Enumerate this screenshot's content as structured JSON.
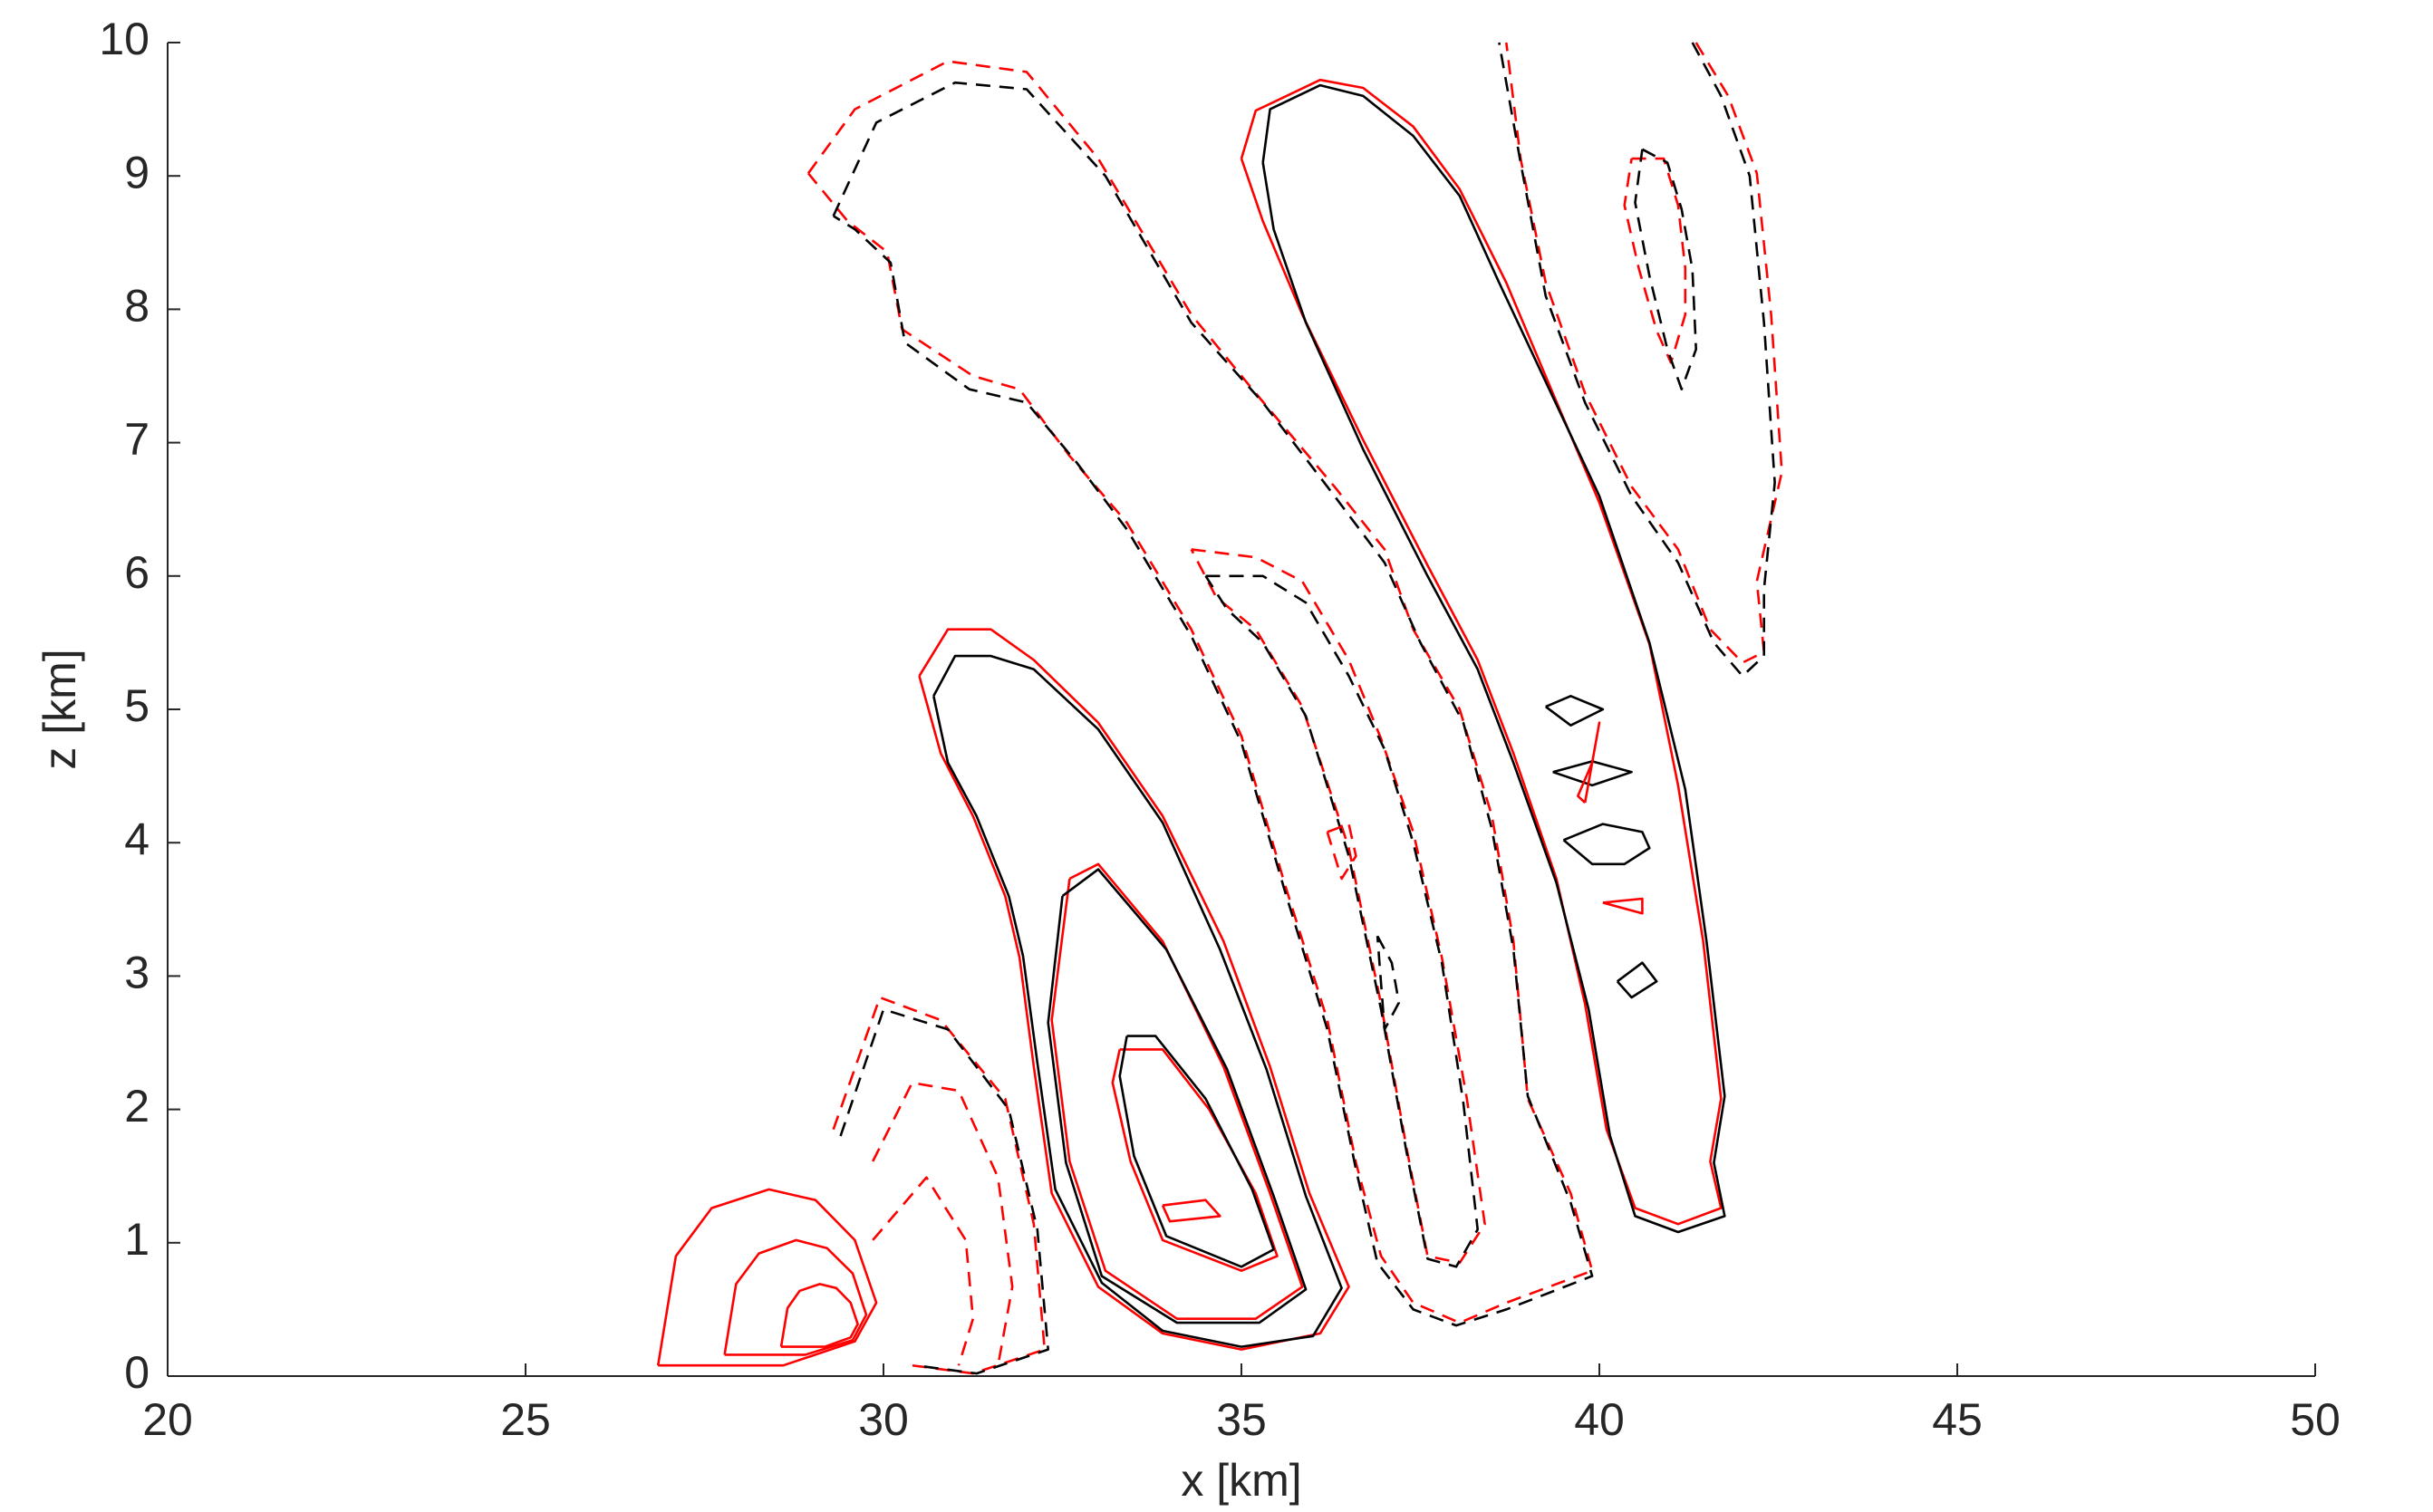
{
  "chart_data": {
    "type": "contour",
    "xlabel": "x [km]",
    "ylabel": "z [km]",
    "xlim": [
      20,
      50
    ],
    "ylim": [
      0,
      10
    ],
    "xticks": [
      20,
      25,
      30,
      35,
      40,
      45,
      50
    ],
    "yticks": [
      0,
      1,
      2,
      3,
      4,
      5,
      6,
      7,
      8,
      9,
      10
    ],
    "contours": [
      {
        "color": "#ff0000",
        "style": "dashed",
        "x": [
          28.95,
          29.6,
          30.9,
          32.0,
          33.0,
          34.3,
          35.2,
          36.3,
          37.0,
          37.4,
          38.05,
          38.5,
          38.8,
          39.0,
          39.6,
          39.9,
          38.7,
          38.05,
          37.4,
          36.95,
          36.6,
          36.2,
          35.6,
          35.0,
          34.3,
          33.4,
          32.6,
          31.9,
          31.25,
          30.26,
          30.05,
          29.5,
          28.95
        ],
        "y": [
          9.02,
          9.5,
          9.86,
          9.78,
          9.13,
          7.96,
          7.37,
          6.67,
          6.2,
          5.6,
          5.0,
          4.2,
          3.26,
          2.08,
          1.37,
          0.79,
          0.55,
          0.4,
          0.55,
          0.9,
          1.6,
          2.67,
          3.7,
          4.8,
          5.6,
          6.4,
          6.9,
          7.4,
          7.5,
          7.85,
          8.43,
          8.66,
          9.02
        ]
      },
      {
        "color": "#000000",
        "style": "dashed",
        "x": [
          29.3,
          29.9,
          31.0,
          32.0,
          33.1,
          34.3,
          35.3,
          36.3,
          37.0,
          37.5,
          38.1,
          38.5,
          38.8,
          39.0,
          39.6,
          39.9,
          38.7,
          38.0,
          37.4,
          36.9,
          36.6,
          36.2,
          35.6,
          35.0,
          34.3,
          33.4,
          32.7,
          32.0,
          31.2,
          30.3,
          30.1,
          29.6,
          29.3
        ],
        "y": [
          8.7,
          9.4,
          9.7,
          9.65,
          9.0,
          7.9,
          7.3,
          6.6,
          6.1,
          5.5,
          4.9,
          4.1,
          3.2,
          2.1,
          1.3,
          0.75,
          0.5,
          0.38,
          0.5,
          0.85,
          1.55,
          2.6,
          3.65,
          4.75,
          5.55,
          6.35,
          6.85,
          7.3,
          7.4,
          7.75,
          8.35,
          8.6,
          8.7
        ]
      },
      {
        "color": "#ff0000",
        "style": "dashed",
        "x": [
          34.3,
          35.2,
          35.85,
          36.5,
          36.95,
          37.4,
          37.8,
          38.15,
          38.4,
          38.05,
          37.6,
          37.3,
          36.95,
          36.5,
          35.85,
          35.2,
          34.65,
          34.3
        ],
        "y": [
          6.2,
          6.14,
          5.96,
          5.37,
          4.78,
          4.08,
          3.14,
          2.08,
          1.14,
          0.85,
          0.9,
          1.73,
          2.79,
          3.96,
          5.02,
          5.6,
          5.84,
          6.2
        ]
      },
      {
        "color": "#000000",
        "style": "dashed",
        "x": [
          34.5,
          35.3,
          35.9,
          36.5,
          37.0,
          37.4,
          37.8,
          38.1,
          38.3,
          38.0,
          37.6,
          37.3,
          36.95,
          36.5,
          35.9,
          35.3,
          34.8,
          34.5
        ],
        "y": [
          6.0,
          6.0,
          5.8,
          5.25,
          4.7,
          4.0,
          3.1,
          2.05,
          1.1,
          0.82,
          0.88,
          1.7,
          2.75,
          3.9,
          4.95,
          5.5,
          5.75,
          6.0
        ]
      },
      {
        "color": "#ff0000",
        "style": "solid",
        "x": [
          30.5,
          30.9,
          31.5,
          32.1,
          33.0,
          33.9,
          34.75,
          35.4,
          35.95,
          36.5,
          36.1,
          35.0,
          33.9,
          33.0,
          32.35,
          32.1,
          31.9,
          31.7,
          31.25,
          30.8,
          30.5
        ],
        "y": [
          5.25,
          5.6,
          5.6,
          5.37,
          4.9,
          4.2,
          3.26,
          2.32,
          1.37,
          0.67,
          0.32,
          0.2,
          0.32,
          0.67,
          1.37,
          2.32,
          3.14,
          3.6,
          4.2,
          4.67,
          5.25
        ]
      },
      {
        "color": "#000000",
        "style": "solid",
        "x": [
          30.7,
          31.0,
          31.5,
          32.1,
          33.0,
          33.9,
          34.7,
          35.35,
          35.9,
          36.4,
          36.0,
          35.0,
          33.9,
          33.05,
          32.4,
          32.15,
          31.95,
          31.75,
          31.3,
          30.9,
          30.7
        ],
        "y": [
          5.1,
          5.4,
          5.4,
          5.3,
          4.85,
          4.15,
          3.2,
          2.3,
          1.35,
          0.66,
          0.3,
          0.22,
          0.34,
          0.7,
          1.4,
          2.35,
          3.15,
          3.6,
          4.2,
          4.6,
          5.1
        ]
      },
      {
        "color": "#ff0000",
        "style": "solid",
        "x": [
          32.6,
          33.0,
          33.9,
          34.75,
          35.4,
          35.85,
          35.2,
          34.1,
          33.1,
          32.6,
          32.35,
          32.6
        ],
        "y": [
          3.73,
          3.84,
          3.26,
          2.32,
          1.37,
          0.67,
          0.43,
          0.43,
          0.79,
          1.61,
          2.67,
          3.73
        ]
      },
      {
        "color": "#000000",
        "style": "solid",
        "x": [
          32.5,
          33.0,
          33.95,
          34.8,
          35.45,
          35.9,
          35.25,
          34.1,
          33.05,
          32.55,
          32.3,
          32.5
        ],
        "y": [
          3.6,
          3.8,
          3.2,
          2.3,
          1.35,
          0.65,
          0.4,
          0.4,
          0.75,
          1.6,
          2.65,
          3.6
        ]
      },
      {
        "color": "#ff0000",
        "style": "solid",
        "x": [
          33.3,
          33.9,
          34.55,
          35.2,
          35.5,
          35.0,
          33.9,
          33.45,
          33.2,
          33.3
        ],
        "y": [
          2.45,
          2.45,
          2.0,
          1.37,
          0.9,
          0.79,
          1.02,
          1.61,
          2.2,
          2.45
        ]
      },
      {
        "color": "#000000",
        "style": "solid",
        "x": [
          33.4,
          33.8,
          34.5,
          35.15,
          35.45,
          35.0,
          33.95,
          33.5,
          33.3,
          33.4
        ],
        "y": [
          2.55,
          2.55,
          2.08,
          1.4,
          0.95,
          0.82,
          1.05,
          1.65,
          2.25,
          2.55
        ]
      },
      {
        "color": "#ff0000",
        "style": "solid",
        "x": [
          33.9,
          34.5,
          34.7,
          34.0,
          33.9
        ],
        "y": [
          1.28,
          1.32,
          1.2,
          1.16,
          1.28
        ]
      },
      {
        "color": "#ff0000",
        "style": "solid",
        "x": [
          35.0,
          35.2,
          36.1,
          36.7,
          37.4,
          38.05,
          38.7,
          39.35,
          40.0,
          40.7,
          41.1,
          41.45,
          41.7,
          41.55,
          41.7,
          41.1,
          40.5,
          40.1,
          39.8,
          39.4,
          38.8,
          38.3,
          37.6,
          36.7,
          35.85,
          35.3,
          35.0
        ],
        "y": [
          9.13,
          9.49,
          9.72,
          9.66,
          9.37,
          8.9,
          8.2,
          7.37,
          6.55,
          5.49,
          4.43,
          3.26,
          2.08,
          1.61,
          1.26,
          1.14,
          1.26,
          1.85,
          2.79,
          3.73,
          4.67,
          5.37,
          6.08,
          7.02,
          7.96,
          8.66,
          9.13
        ]
      },
      {
        "color": "#000000",
        "style": "solid",
        "x": [
          35.3,
          35.4,
          36.1,
          36.7,
          37.4,
          38.05,
          38.6,
          39.3,
          40.0,
          40.7,
          41.2,
          41.5,
          41.75,
          41.6,
          41.75,
          41.1,
          40.5,
          40.15,
          39.85,
          39.4,
          38.8,
          38.3,
          37.6,
          36.7,
          35.9,
          35.45,
          35.3
        ],
        "y": [
          9.1,
          9.5,
          9.68,
          9.6,
          9.3,
          8.85,
          8.2,
          7.4,
          6.6,
          5.5,
          4.4,
          3.25,
          2.1,
          1.6,
          1.2,
          1.08,
          1.2,
          1.8,
          2.75,
          3.7,
          4.6,
          5.3,
          6.0,
          6.95,
          7.9,
          8.6,
          9.1
        ]
      },
      {
        "color": "#ff0000",
        "style": "dashed",
        "x": [
          41.35,
          41.8,
          42.2,
          42.4,
          42.55,
          42.2,
          42.3,
          42.0,
          41.55,
          41.1,
          40.45,
          39.8,
          39.25,
          38.9,
          38.7
        ],
        "y": [
          10.0,
          9.6,
          9.02,
          7.96,
          6.78,
          5.96,
          5.43,
          5.35,
          5.6,
          6.2,
          6.67,
          7.37,
          8.2,
          9.13,
          10.0
        ]
      },
      {
        "color": "#000000",
        "style": "dashed",
        "x": [
          41.3,
          41.7,
          42.1,
          42.3,
          42.45,
          42.3,
          42.3,
          42.0,
          41.6,
          41.1,
          40.45,
          39.8,
          39.25,
          38.9,
          38.6
        ],
        "y": [
          10.0,
          9.6,
          9.0,
          7.9,
          6.7,
          5.9,
          5.4,
          5.25,
          5.5,
          6.1,
          6.6,
          7.3,
          8.1,
          9.1,
          10.0
        ]
      },
      {
        "color": "#ff0000",
        "style": "dashed",
        "x": [
          40.45,
          40.9,
          41.1,
          41.2,
          41.2,
          41.0,
          40.8,
          40.55,
          40.35,
          40.45
        ],
        "y": [
          9.13,
          9.13,
          8.78,
          8.31,
          7.96,
          7.6,
          7.84,
          8.31,
          8.78,
          9.13
        ]
      },
      {
        "color": "#000000",
        "style": "dashed",
        "x": [
          40.6,
          40.95,
          41.15,
          41.3,
          41.35,
          41.15,
          40.95,
          40.7,
          40.5,
          40.6
        ],
        "y": [
          9.2,
          9.1,
          8.75,
          8.3,
          7.7,
          7.4,
          7.7,
          8.25,
          8.8,
          9.2
        ]
      },
      {
        "color": "#000000",
        "style": "solid",
        "x": [
          39.25,
          39.6,
          40.05,
          39.6,
          39.25
        ],
        "y": [
          5.02,
          5.1,
          5.0,
          4.88,
          5.02
        ]
      },
      {
        "color": "#000000",
        "style": "solid",
        "x": [
          39.35,
          39.9,
          40.45,
          39.9,
          39.35
        ],
        "y": [
          4.53,
          4.61,
          4.53,
          4.43,
          4.53
        ]
      },
      {
        "color": "#000000",
        "style": "solid",
        "x": [
          39.5,
          40.05,
          40.6,
          40.7,
          40.35,
          39.9,
          39.5
        ],
        "y": [
          4.02,
          4.14,
          4.08,
          3.96,
          3.84,
          3.84,
          4.02
        ]
      },
      {
        "color": "#ff0000",
        "style": "solid",
        "x": [
          40.05,
          40.6,
          40.6,
          40.05
        ],
        "y": [
          3.55,
          3.58,
          3.47,
          3.55
        ]
      },
      {
        "color": "#000000",
        "style": "solid",
        "x": [
          40.25,
          40.6,
          40.8,
          40.45,
          40.25
        ],
        "y": [
          2.96,
          3.1,
          2.96,
          2.84,
          2.96
        ]
      },
      {
        "color": "#ff0000",
        "style": "solid",
        "x": [
          39.8,
          40.0,
          39.9,
          39.7,
          39.8
        ],
        "y": [
          4.3,
          4.9,
          4.6,
          4.35,
          4.3
        ]
      },
      {
        "color": "#ff0000",
        "style": "dashed",
        "x": [
          36.2,
          36.5,
          36.6,
          36.4,
          36.2
        ],
        "y": [
          4.08,
          4.14,
          3.9,
          3.73,
          4.08
        ]
      },
      {
        "color": "#000000",
        "style": "dashed",
        "x": [
          36.9,
          37.1,
          37.2,
          37.0,
          36.9
        ],
        "y": [
          3.3,
          3.1,
          2.8,
          2.6,
          3.3
        ]
      },
      {
        "color": "#ff0000",
        "style": "solid",
        "x": [
          26.85,
          27.1,
          27.6,
          28.4,
          29.05,
          29.6,
          29.9,
          29.6,
          28.6,
          26.85
        ],
        "y": [
          0.08,
          0.9,
          1.26,
          1.4,
          1.32,
          1.02,
          0.55,
          0.26,
          0.08,
          0.08
        ]
      },
      {
        "color": "#ff0000",
        "style": "solid",
        "x": [
          27.78,
          27.94,
          28.26,
          28.78,
          29.21,
          29.57,
          29.76,
          29.57,
          28.91,
          27.78
        ],
        "y": [
          0.16,
          0.69,
          0.92,
          1.02,
          0.96,
          0.77,
          0.46,
          0.27,
          0.16,
          0.16
        ]
      },
      {
        "color": "#ff0000",
        "style": "solid",
        "x": [
          28.57,
          28.66,
          28.83,
          29.11,
          29.34,
          29.54,
          29.64,
          29.54,
          29.18,
          28.57
        ],
        "y": [
          0.22,
          0.51,
          0.64,
          0.69,
          0.66,
          0.55,
          0.39,
          0.29,
          0.22,
          0.22
        ]
      },
      {
        "color": "#ff0000",
        "style": "dashed",
        "x": [
          29.3,
          29.95,
          30.8,
          31.7,
          32.1,
          32.25,
          31.25,
          30.4
        ],
        "y": [
          1.85,
          2.84,
          2.67,
          2.08,
          1.14,
          0.2,
          0.02,
          0.08
        ]
      },
      {
        "color": "#000000",
        "style": "dashed",
        "x": [
          29.4,
          30.0,
          30.9,
          31.75,
          32.15,
          32.3,
          31.3,
          30.45
        ],
        "y": [
          1.8,
          2.75,
          2.6,
          2.0,
          1.1,
          0.2,
          0.02,
          0.08
        ]
      },
      {
        "color": "#ff0000",
        "style": "dashed",
        "x": [
          29.85,
          30.4,
          31.05,
          31.6,
          31.8,
          31.6
        ],
        "y": [
          1.61,
          2.2,
          2.14,
          1.49,
          0.67,
          0.08
        ]
      },
      {
        "color": "#ff0000",
        "style": "dashed",
        "x": [
          29.85,
          30.6,
          31.15,
          31.25,
          31.05
        ],
        "y": [
          1.02,
          1.49,
          1.02,
          0.43,
          0.08
        ]
      }
    ]
  }
}
